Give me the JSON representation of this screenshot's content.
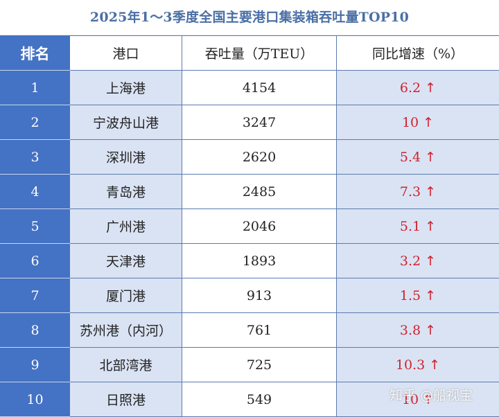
{
  "title": "2025年1～3季度全国主要港口集装箱吞吐量TOP10",
  "headers": {
    "rank": "排名",
    "port": "港口",
    "throughput": "吞吐量（万TEU）",
    "growth": "同比增速（%）"
  },
  "rows": [
    {
      "rank": "1",
      "port": "上海港",
      "throughput": "4154",
      "growth": "6.2",
      "arrow": "↑"
    },
    {
      "rank": "2",
      "port": "宁波舟山港",
      "throughput": "3247",
      "growth": "10",
      "arrow": "↑"
    },
    {
      "rank": "3",
      "port": "深圳港",
      "throughput": "2620",
      "growth": "5.4",
      "arrow": "↑"
    },
    {
      "rank": "4",
      "port": "青岛港",
      "throughput": "2485",
      "growth": "7.3",
      "arrow": "↑"
    },
    {
      "rank": "5",
      "port": "广州港",
      "throughput": "2046",
      "growth": "5.1",
      "arrow": "↑"
    },
    {
      "rank": "6",
      "port": "天津港",
      "throughput": "1893",
      "growth": "3.2",
      "arrow": "↑"
    },
    {
      "rank": "7",
      "port": "厦门港",
      "throughput": "913",
      "growth": "1.5",
      "arrow": "↑"
    },
    {
      "rank": "8",
      "port": "苏州港（内河）",
      "throughput": "761",
      "growth": "3.8",
      "arrow": "↑"
    },
    {
      "rank": "9",
      "port": "北部湾港",
      "throughput": "725",
      "growth": "10.3",
      "arrow": "↑"
    },
    {
      "rank": "10",
      "port": "日照港",
      "throughput": "549",
      "growth": "10",
      "arrow": "↑"
    }
  ],
  "watermark": "知乎 @船视宝",
  "colors": {
    "rank_bg": "#4472c4",
    "alt_bg": "#dae3f3",
    "title": "#4a6fa5",
    "growth_text": "#d0202e"
  }
}
